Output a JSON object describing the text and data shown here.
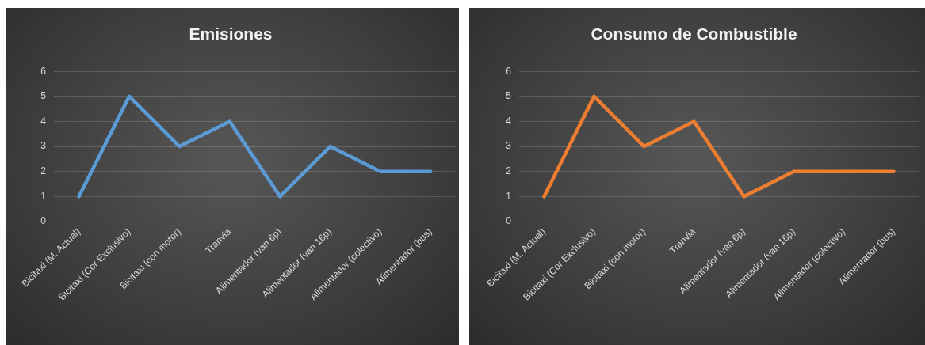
{
  "chart_data": [
    {
      "type": "line",
      "title": "Emisiones",
      "categories": [
        "Bicitaxi (M. Actual)",
        "Bicitaxi (Cor Exclusivo)",
        "Bicitaxi (con motor)",
        "Tranvia",
        "Alimentador (van 6p)",
        "Alimentador (van 16p)",
        "Alimentador (colectivo)",
        "Alimentador (bus)"
      ],
      "series": [
        {
          "color": "#5b9bd5",
          "values": [
            1,
            5,
            3,
            4,
            1,
            3,
            2,
            2
          ]
        }
      ],
      "ylim": [
        0,
        6
      ],
      "yticks": [
        0,
        1,
        2,
        3,
        4,
        5,
        6
      ],
      "grid": "y"
    },
    {
      "type": "line",
      "title": "Consumo de Combustible",
      "categories": [
        "Bicitaxi (M. Actual)",
        "Bicitaxi (Cor Exclusivo)",
        "Bicitaxi (con motor)",
        "Tranvia",
        "Alimentador (van 6p)",
        "Alimentador (van 16p)",
        "Alimentador (colectivo)",
        "Alimentador (bus)"
      ],
      "series": [
        {
          "color": "#ed7d31",
          "values": [
            1,
            5,
            3,
            4,
            1,
            2,
            2,
            2
          ]
        }
      ],
      "ylim": [
        0,
        6
      ],
      "yticks": [
        0,
        1,
        2,
        3,
        4,
        5,
        6
      ],
      "grid": "y"
    }
  ]
}
